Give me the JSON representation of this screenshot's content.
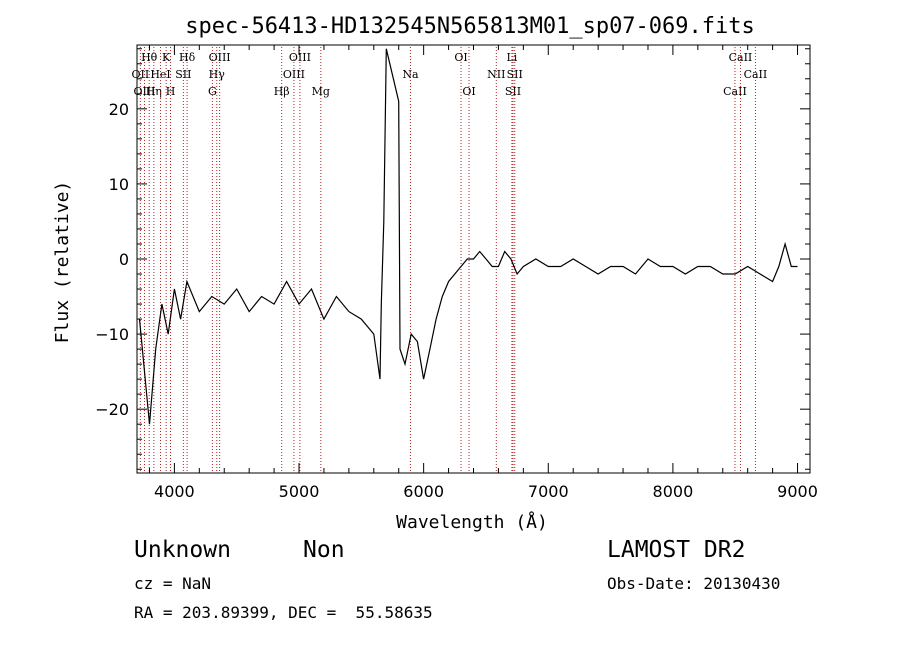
{
  "chart_data": {
    "type": "line",
    "title": "spec-56413-HD132545N565813M01_sp07-069.fits",
    "xlabel": "Wavelength (Å)",
    "ylabel": "Flux (relative)",
    "xlim": [
      3700,
      9100
    ],
    "ylim": [
      -28.5,
      28.5
    ],
    "x_ticks": [
      4000,
      5000,
      6000,
      7000,
      8000,
      9000
    ],
    "y_ticks": [
      -20,
      -10,
      0,
      10,
      20
    ],
    "x_tick_labels": [
      "4000",
      "5000",
      "6000",
      "7000",
      "8000",
      "9000"
    ],
    "y_tick_labels": [
      "−20",
      "−10",
      "0",
      "10",
      "20"
    ],
    "grid": false,
    "legend": "none",
    "series": [
      {
        "color": "#000000",
        "x": [
          3720,
          3760,
          3800,
          3850,
          3900,
          3950,
          4000,
          4050,
          4100,
          4200,
          4300,
          4400,
          4500,
          4600,
          4700,
          4800,
          4900,
          5000,
          5100,
          5200,
          5300,
          5400,
          5500,
          5600,
          5650,
          5660,
          5680,
          5700,
          5800,
          5810,
          5850,
          5900,
          5950,
          6000,
          6050,
          6100,
          6150,
          6200,
          6250,
          6300,
          6350,
          6400,
          6450,
          6500,
          6550,
          6600,
          6650,
          6700,
          6750,
          6800,
          6900,
          7000,
          7100,
          7200,
          7300,
          7400,
          7500,
          7600,
          7700,
          7800,
          7900,
          8000,
          8100,
          8200,
          8300,
          8400,
          8500,
          8600,
          8700,
          8800,
          8850,
          8900,
          8950,
          9000
        ],
        "y": [
          -8,
          -15,
          -22,
          -12,
          -6,
          -10,
          -4,
          -8,
          -3,
          -7,
          -5,
          -6,
          -4,
          -7,
          -5,
          -6,
          -3,
          -6,
          -4,
          -8,
          -5,
          -7,
          -8,
          -10,
          -16,
          -6,
          5,
          28,
          21,
          -12,
          -14,
          -10,
          -11,
          -16,
          -12,
          -8,
          -5,
          -3,
          -2,
          -1,
          0,
          0,
          1,
          0,
          -1,
          -1,
          1,
          0,
          -2,
          -1,
          0,
          -1,
          -1,
          0,
          -1,
          -2,
          -1,
          -1,
          -2,
          0,
          -1,
          -1,
          -2,
          -1,
          -1,
          -2,
          -2,
          -1,
          -2,
          -3,
          -1,
          2,
          -1,
          -1
        ]
      }
    ],
    "line_markers": [
      {
        "label": "OII",
        "x": 3727,
        "row": 2
      },
      {
        "label": "OIII",
        "x": 3760,
        "row": 3
      },
      {
        "label": "Hθ",
        "x": 3798,
        "row": 1
      },
      {
        "label": "Hη",
        "x": 3835,
        "row": 3
      },
      {
        "label": "HeI",
        "x": 3889,
        "row": 2
      },
      {
        "label": "K",
        "x": 3934,
        "row": 1
      },
      {
        "label": "H",
        "x": 3969,
        "row": 3
      },
      {
        "label": "SII",
        "x": 4072,
        "row": 2
      },
      {
        "label": "Hδ",
        "x": 4102,
        "row": 1
      },
      {
        "label": "G",
        "x": 4305,
        "row": 3
      },
      {
        "label": "Hγ",
        "x": 4340,
        "row": 2
      },
      {
        "label": "OIII",
        "x": 4363,
        "row": 1
      },
      {
        "label": "Hβ",
        "x": 4861,
        "row": 3
      },
      {
        "label": "OIII",
        "x": 4959,
        "row": 2
      },
      {
        "label": "OIII",
        "x": 5007,
        "row": 1
      },
      {
        "label": "Mg",
        "x": 5175,
        "row": 3
      },
      {
        "label": "Na",
        "x": 5894,
        "row": 2
      },
      {
        "label": "OI",
        "x": 6300,
        "row": 1
      },
      {
        "label": "OI",
        "x": 6364,
        "row": 3
      },
      {
        "label": "NII",
        "x": 6583,
        "row": 2
      },
      {
        "label": "Li",
        "x": 6708,
        "row": 1
      },
      {
        "label": "SII",
        "x": 6717,
        "row": 3
      },
      {
        "label": "SII",
        "x": 6731,
        "row": 2
      },
      {
        "label": "CaII",
        "x": 8498,
        "row": 3
      },
      {
        "label": "CaII",
        "x": 8542,
        "row": 1
      },
      {
        "label": "CaII",
        "x": 8662,
        "row": 2
      }
    ],
    "marker_line_color": "#b22222",
    "axis_color": "#000000"
  },
  "footer": {
    "object_class": "Unknown",
    "object_subclass": "Non",
    "cz": "cz = NaN",
    "radec": "RA = 203.89399, DEC =  55.58635",
    "survey": "LAMOST DR2",
    "obs_date": "Obs-Date: 20130430"
  }
}
